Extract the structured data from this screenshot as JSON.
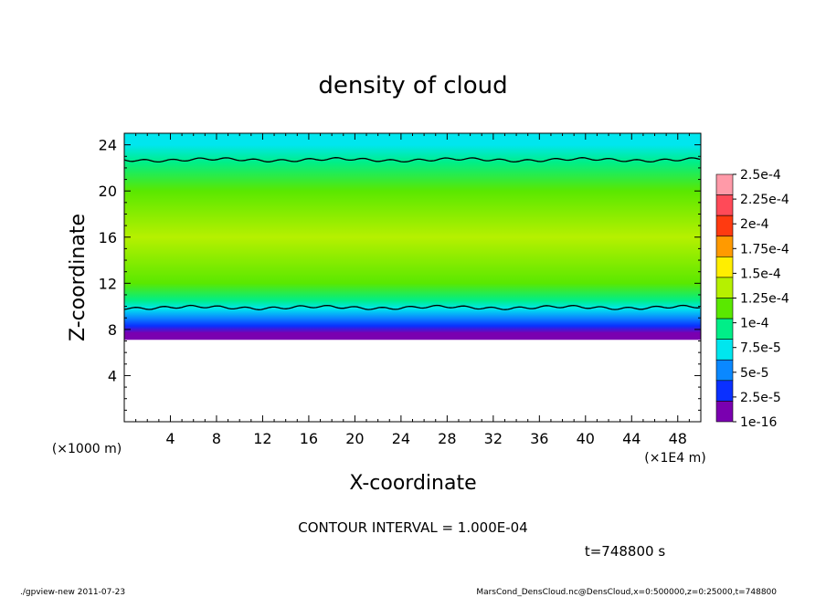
{
  "chart_data": {
    "type": "heatmap",
    "title": "density of cloud",
    "xlabel": "X-coordinate",
    "ylabel": "Z-coordinate",
    "x_unit_label": "(×1E4 m)",
    "y_unit_label": "(×1000 m)",
    "xlim": [
      0,
      50
    ],
    "ylim": [
      0,
      25
    ],
    "xticks": [
      4,
      8,
      12,
      16,
      20,
      24,
      28,
      32,
      36,
      40,
      44,
      48
    ],
    "yticks": [
      4,
      8,
      12,
      16,
      20,
      24
    ],
    "xtick_labels": [
      "4",
      "8",
      "12",
      "16",
      "20",
      "24",
      "28",
      "32",
      "36",
      "40",
      "44",
      "48"
    ],
    "ytick_labels": [
      "4",
      "8",
      "12",
      "16",
      "20",
      "24"
    ],
    "profile": [
      {
        "z": 25.0,
        "value": 9e-05
      },
      {
        "z": 24.0,
        "value": 9.5e-05
      },
      {
        "z": 22.5,
        "value": 0.000105
      },
      {
        "z": 20.0,
        "value": 0.00014
      },
      {
        "z": 16.0,
        "value": 0.00015
      },
      {
        "z": 12.0,
        "value": 0.000138
      },
      {
        "z": 10.5,
        "value": 0.00011
      },
      {
        "z": 9.8,
        "value": 8.5e-05
      },
      {
        "z": 9.0,
        "value": 6.5e-05
      },
      {
        "z": 8.3,
        "value": 3e-05
      },
      {
        "z": 7.7,
        "value": 1e-05
      },
      {
        "z": 7.1,
        "value": 1e-16
      }
    ],
    "contour_levels_z": [
      22.7,
      9.9
    ],
    "colorbar": {
      "labels": [
        "2.5e-4",
        "2.25e-4",
        "2e-4",
        "1.75e-4",
        "1.5e-4",
        "1.25e-4",
        "1e-4",
        "7.5e-5",
        "5e-5",
        "2.5e-5",
        "1e-16"
      ],
      "colors": [
        "#ff9aa8",
        "#ff4a58",
        "#ff3a10",
        "#ff9a00",
        "#ffee00",
        "#b6f000",
        "#5ae800",
        "#00ee88",
        "#00e6ee",
        "#0a88ff",
        "#0a30ff",
        "#7a00b0"
      ]
    }
  },
  "annotations": {
    "contour_interval": "CONTOUR INTERVAL = 1.000E-04",
    "time": "t=748800  s",
    "footer_left": "./gpview-new   2011-07-23",
    "footer_right": "MarsCond_DensCloud.nc@DensCloud,x=0:500000,z=0:25000,t=748800"
  }
}
